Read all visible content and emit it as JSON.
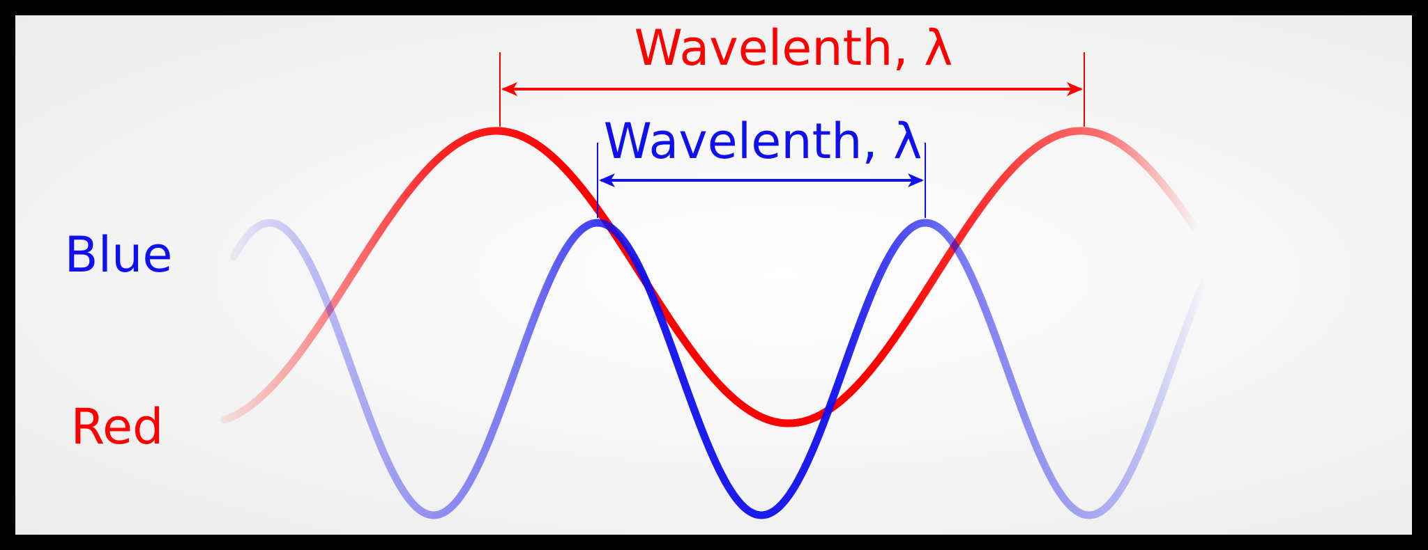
{
  "labels": {
    "blue": "Blue",
    "red": "Red"
  },
  "wavelength_labels": {
    "red": "Wavelenth, λ",
    "blue": "Wavelenth, λ"
  },
  "colors": {
    "red": "#ff0000",
    "blue": "#1010ee",
    "background": "#f2f2f2",
    "border": "#000000"
  },
  "waves": [
    {
      "name": "Red",
      "relative_wavelength": 2,
      "color": "#ff0000"
    },
    {
      "name": "Blue",
      "relative_wavelength": 1,
      "color": "#1010ee"
    }
  ]
}
